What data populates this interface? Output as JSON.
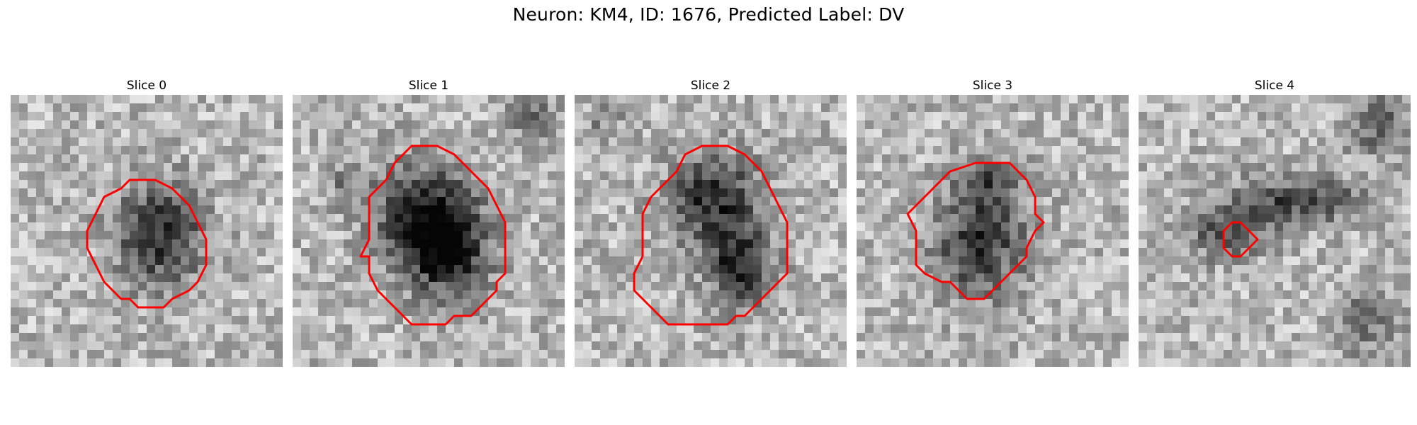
{
  "figure": {
    "title": "Neuron: KM4, ID: 1676, Predicted Label: DV"
  },
  "panels": [
    {
      "title": "Slice 0"
    },
    {
      "title": "Slice 1"
    },
    {
      "title": "Slice 2"
    },
    {
      "title": "Slice 3"
    },
    {
      "title": "Slice 4"
    }
  ],
  "contour_color": "#ff0000"
}
